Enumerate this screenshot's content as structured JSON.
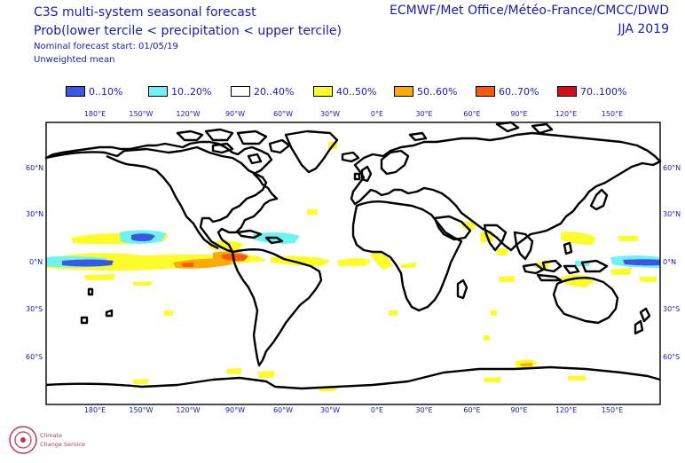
{
  "header": {
    "title": "C3S multi-system seasonal forecast",
    "subtitle": "Prob(lower tercile < precipitation < upper tercile)",
    "forecast_start": "Nominal forecast start: 01/05/19",
    "mean_type": "Unweighted mean",
    "centres": "ECMWF/Met Office/Météo-France/CMCC/DWD",
    "season": "JJA 2019"
  },
  "legend": [
    {
      "label": "0..10%",
      "color": "#3a57e8"
    },
    {
      "label": "10..20%",
      "color": "#6ef2f2"
    },
    {
      "label": "20..40%",
      "color": "#ffffff"
    },
    {
      "label": "40..50%",
      "color": "#fefb2a"
    },
    {
      "label": "50..60%",
      "color": "#fdaa08"
    },
    {
      "label": "60..70%",
      "color": "#fa5a0b"
    },
    {
      "label": "70..100%",
      "color": "#d30d17"
    }
  ],
  "axes": {
    "lon_labels": [
      "180°E",
      "150°W",
      "120°W",
      "90°W",
      "60°W",
      "30°W",
      "0°E",
      "30°E",
      "60°E",
      "90°E",
      "120°E",
      "150°E"
    ],
    "lat_labels": [
      "60°N",
      "30°N",
      "0°N",
      "30°S",
      "60°S"
    ]
  },
  "logo": {
    "text_line1": "Climate",
    "text_line2": "Change Service"
  }
}
